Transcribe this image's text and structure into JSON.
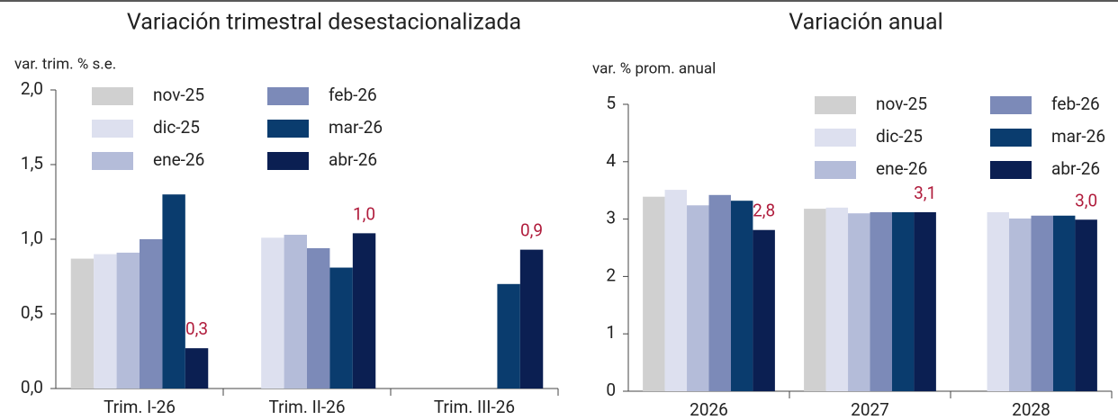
{
  "chart_data": [
    {
      "type": "bar",
      "title": "Variación trimestral desestacionalizada",
      "y_label": "var. trim. % s.e.",
      "categories": [
        "Trim. I-26",
        "Trim. II-26",
        "Trim. III-26"
      ],
      "ylim": [
        0,
        2
      ],
      "yticks": [
        {
          "value": 0,
          "label": "0,0"
        },
        {
          "value": 0.5,
          "label": "0,5"
        },
        {
          "value": 1,
          "label": "1,0"
        },
        {
          "value": 1.5,
          "label": "1,5"
        },
        {
          "value": 2,
          "label": "2,0"
        }
      ],
      "legend": "upper left",
      "series": [
        {
          "name": "nov-25",
          "color": "#d0d0d0",
          "values": [
            0.87,
            null,
            null
          ]
        },
        {
          "name": "dic-25",
          "color": "#dde0ef",
          "values": [
            0.9,
            1.01,
            null
          ]
        },
        {
          "name": "ene-26",
          "color": "#b4bcd9",
          "values": [
            0.91,
            1.03,
            null
          ]
        },
        {
          "name": "feb-26",
          "color": "#7c8ab8",
          "values": [
            1.0,
            0.94,
            null
          ]
        },
        {
          "name": "mar-26",
          "color": "#0a3c6e",
          "values": [
            1.3,
            0.81,
            0.7
          ]
        },
        {
          "name": "abr-26",
          "color": "#0b1f52",
          "values": [
            0.27,
            1.04,
            0.93
          ],
          "value_labels": [
            "0,3",
            "1,0",
            "0,9"
          ]
        }
      ]
    },
    {
      "type": "bar",
      "title": "Variación anual",
      "y_label": "var. % prom. anual",
      "categories": [
        "2026",
        "2027",
        "2028"
      ],
      "ylim": [
        0,
        5
      ],
      "yticks": [
        0,
        1,
        2,
        3,
        4,
        5
      ],
      "legend": "upper right",
      "series": [
        {
          "name": "nov-25",
          "color": "#d0d0d0",
          "values": [
            3.39,
            3.18,
            null
          ]
        },
        {
          "name": "dic-25",
          "color": "#dde0ef",
          "values": [
            3.51,
            3.2,
            3.12
          ]
        },
        {
          "name": "ene-26",
          "color": "#b4bcd9",
          "values": [
            3.24,
            3.1,
            3.01
          ]
        },
        {
          "name": "feb-26",
          "color": "#7c8ab8",
          "values": [
            3.42,
            3.12,
            3.06
          ]
        },
        {
          "name": "mar-26",
          "color": "#0a3c6e",
          "values": [
            3.32,
            3.12,
            3.06
          ]
        },
        {
          "name": "abr-26",
          "color": "#0b1f52",
          "values": [
            2.81,
            3.12,
            2.99
          ],
          "value_labels": [
            "2,8",
            "3,1",
            "3,0"
          ]
        }
      ]
    }
  ]
}
